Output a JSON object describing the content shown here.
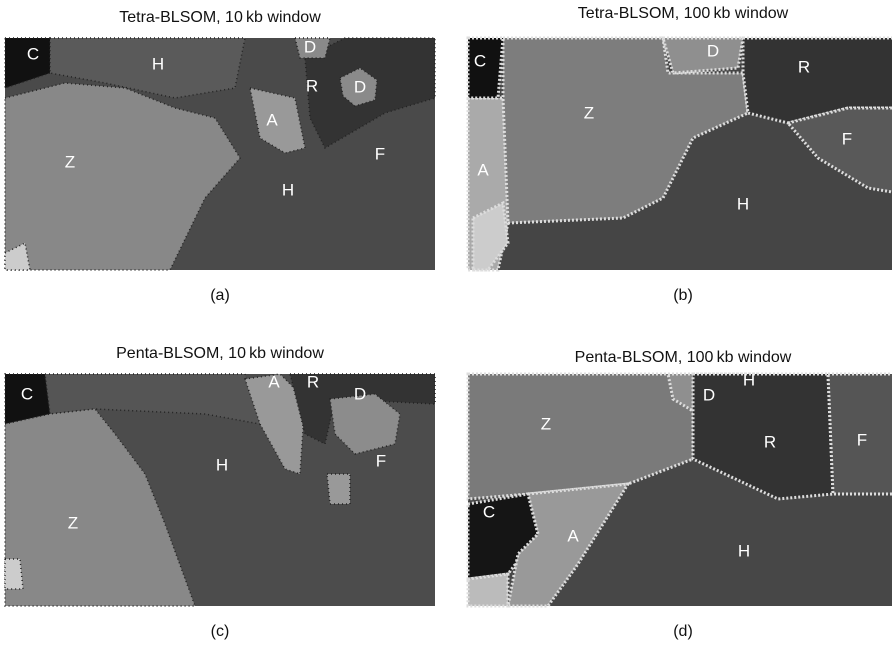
{
  "panels": [
    {
      "title": "Tetra-BLSOM, 10 kb window",
      "caption": "(a)",
      "labels": [
        "C",
        "H",
        "D",
        "R",
        "D",
        "A",
        "Z",
        "F",
        "H"
      ]
    },
    {
      "title": "Tetra-BLSOM, 100 kb window",
      "caption": "(b)",
      "labels": [
        "C",
        "D",
        "R",
        "Z",
        "A",
        "F",
        "H"
      ]
    },
    {
      "title": "Penta-BLSOM, 10 kb window",
      "caption": "(c)",
      "labels": [
        "C",
        "A",
        "R",
        "D",
        "H",
        "F",
        "Z"
      ]
    },
    {
      "title": "Penta-BLSOM, 100 kb window",
      "caption": "(d)",
      "labels": [
        "D",
        "H",
        "Z",
        "R",
        "F",
        "C",
        "A",
        "H"
      ]
    }
  ]
}
